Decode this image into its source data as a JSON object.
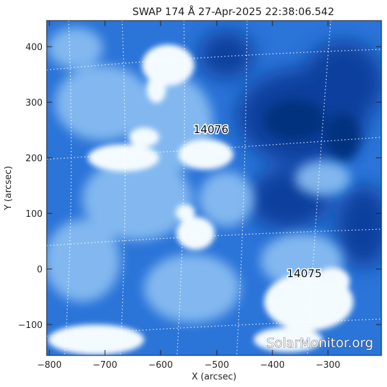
{
  "title": "SWAP 174 Å 27-Apr-2025 22:38:06.542",
  "x_label": "X (arcsec)",
  "y_label": "Y (arcsec)",
  "x_ticks": [
    "−800",
    "−700",
    "−600",
    "−500",
    "−400",
    "−300"
  ],
  "y_ticks": [
    "400",
    "300",
    "200",
    "100",
    "0",
    "−100"
  ],
  "active_regions": [
    {
      "label": "14076"
    },
    {
      "label": "14075"
    }
  ],
  "watermark": "SolarMonitor.org",
  "colors": {
    "background_dark": "#0a3e9c",
    "mid_blue": "#2b74d8",
    "light_blue": "#8cc0f2",
    "bright": "#f4fbff",
    "grid": "#ffffff"
  }
}
